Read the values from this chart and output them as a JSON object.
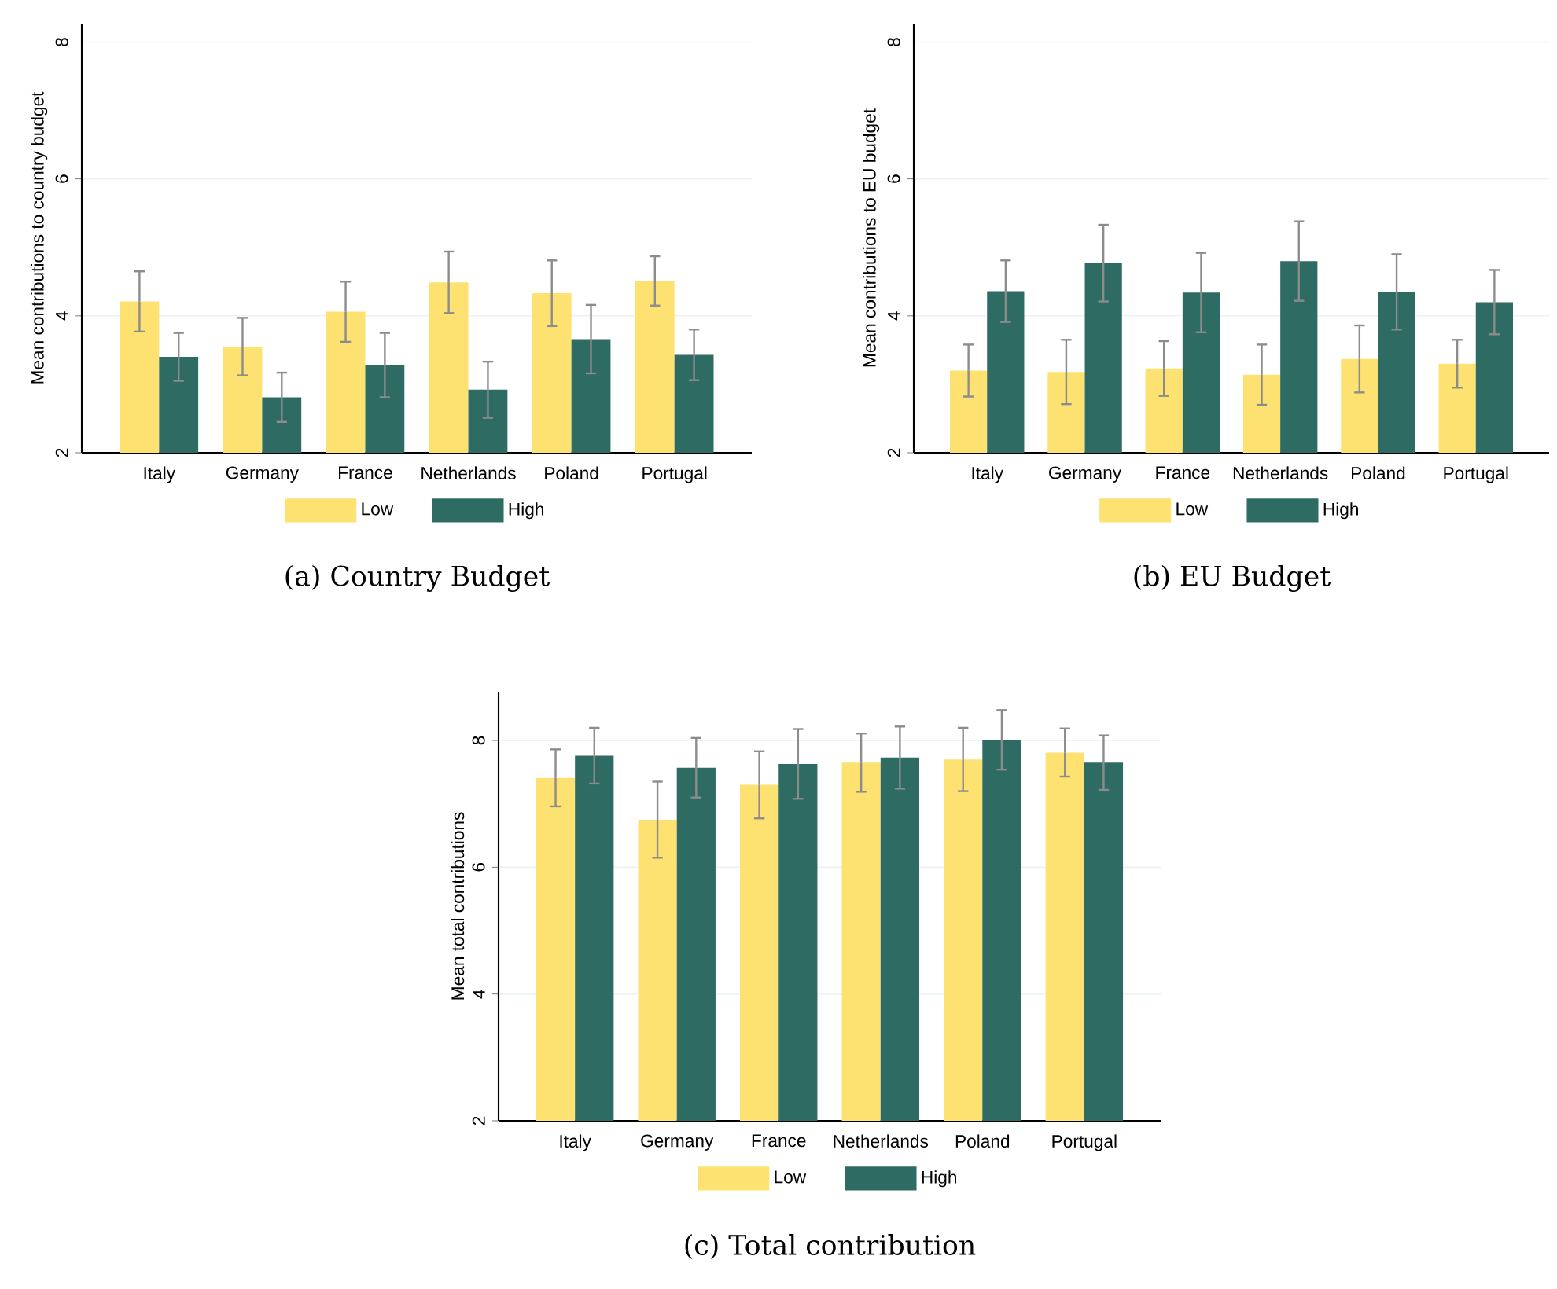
{
  "chart_data": [
    {
      "type": "bar",
      "title": "(a) Country Budget",
      "ylabel": "Mean contributions to country budget",
      "categories": [
        "Italy",
        "Germany",
        "France",
        "Netherlands",
        "Poland",
        "Portugal"
      ],
      "series": [
        {
          "name": "Low",
          "color": "#fde272",
          "values": [
            4.21,
            3.55,
            4.06,
            4.49,
            4.33,
            4.51
          ],
          "errors": [
            0.44,
            0.42,
            0.44,
            0.45,
            0.48,
            0.36
          ]
        },
        {
          "name": "High",
          "color": "#2e6b63",
          "values": [
            3.4,
            2.81,
            3.28,
            2.92,
            3.66,
            3.43
          ],
          "errors": [
            0.35,
            0.36,
            0.47,
            0.41,
            0.5,
            0.37
          ]
        }
      ],
      "ylim": [
        2,
        8.27
      ],
      "yticks": [
        2,
        4,
        6,
        8
      ],
      "grid": "y",
      "legend": "bottom"
    },
    {
      "type": "bar",
      "title": "(b) EU Budget",
      "ylabel": "Mean contributions to EU budget",
      "categories": [
        "Italy",
        "Germany",
        "France",
        "Netherlands",
        "Poland",
        "Portugal"
      ],
      "series": [
        {
          "name": "Low",
          "color": "#fde272",
          "values": [
            3.2,
            3.18,
            3.23,
            3.14,
            3.37,
            3.3
          ],
          "errors": [
            0.38,
            0.47,
            0.4,
            0.44,
            0.49,
            0.35
          ]
        },
        {
          "name": "High",
          "color": "#2e6b63",
          "values": [
            4.36,
            4.77,
            4.34,
            4.8,
            4.35,
            4.2
          ],
          "errors": [
            0.45,
            0.56,
            0.58,
            0.58,
            0.55,
            0.47
          ]
        }
      ],
      "ylim": [
        2,
        8.27
      ],
      "yticks": [
        2,
        4,
        6,
        8
      ],
      "grid": "y",
      "legend": "bottom"
    },
    {
      "type": "bar",
      "title": "(c) Total contribution",
      "ylabel": "Mean total contributions",
      "categories": [
        "Italy",
        "Germany",
        "France",
        "Netherlands",
        "Poland",
        "Portugal"
      ],
      "series": [
        {
          "name": "Low",
          "color": "#fde272",
          "values": [
            7.41,
            6.75,
            7.3,
            7.65,
            7.7,
            7.81
          ],
          "errors": [
            0.45,
            0.6,
            0.53,
            0.46,
            0.5,
            0.38
          ]
        },
        {
          "name": "High",
          "color": "#2e6b63",
          "values": [
            7.76,
            7.57,
            7.63,
            7.73,
            8.01,
            7.65
          ],
          "errors": [
            0.44,
            0.47,
            0.55,
            0.49,
            0.47,
            0.43
          ]
        }
      ],
      "ylim": [
        2,
        8.77
      ],
      "yticks": [
        2,
        4,
        6,
        8
      ],
      "grid": "y",
      "legend": "bottom"
    }
  ]
}
